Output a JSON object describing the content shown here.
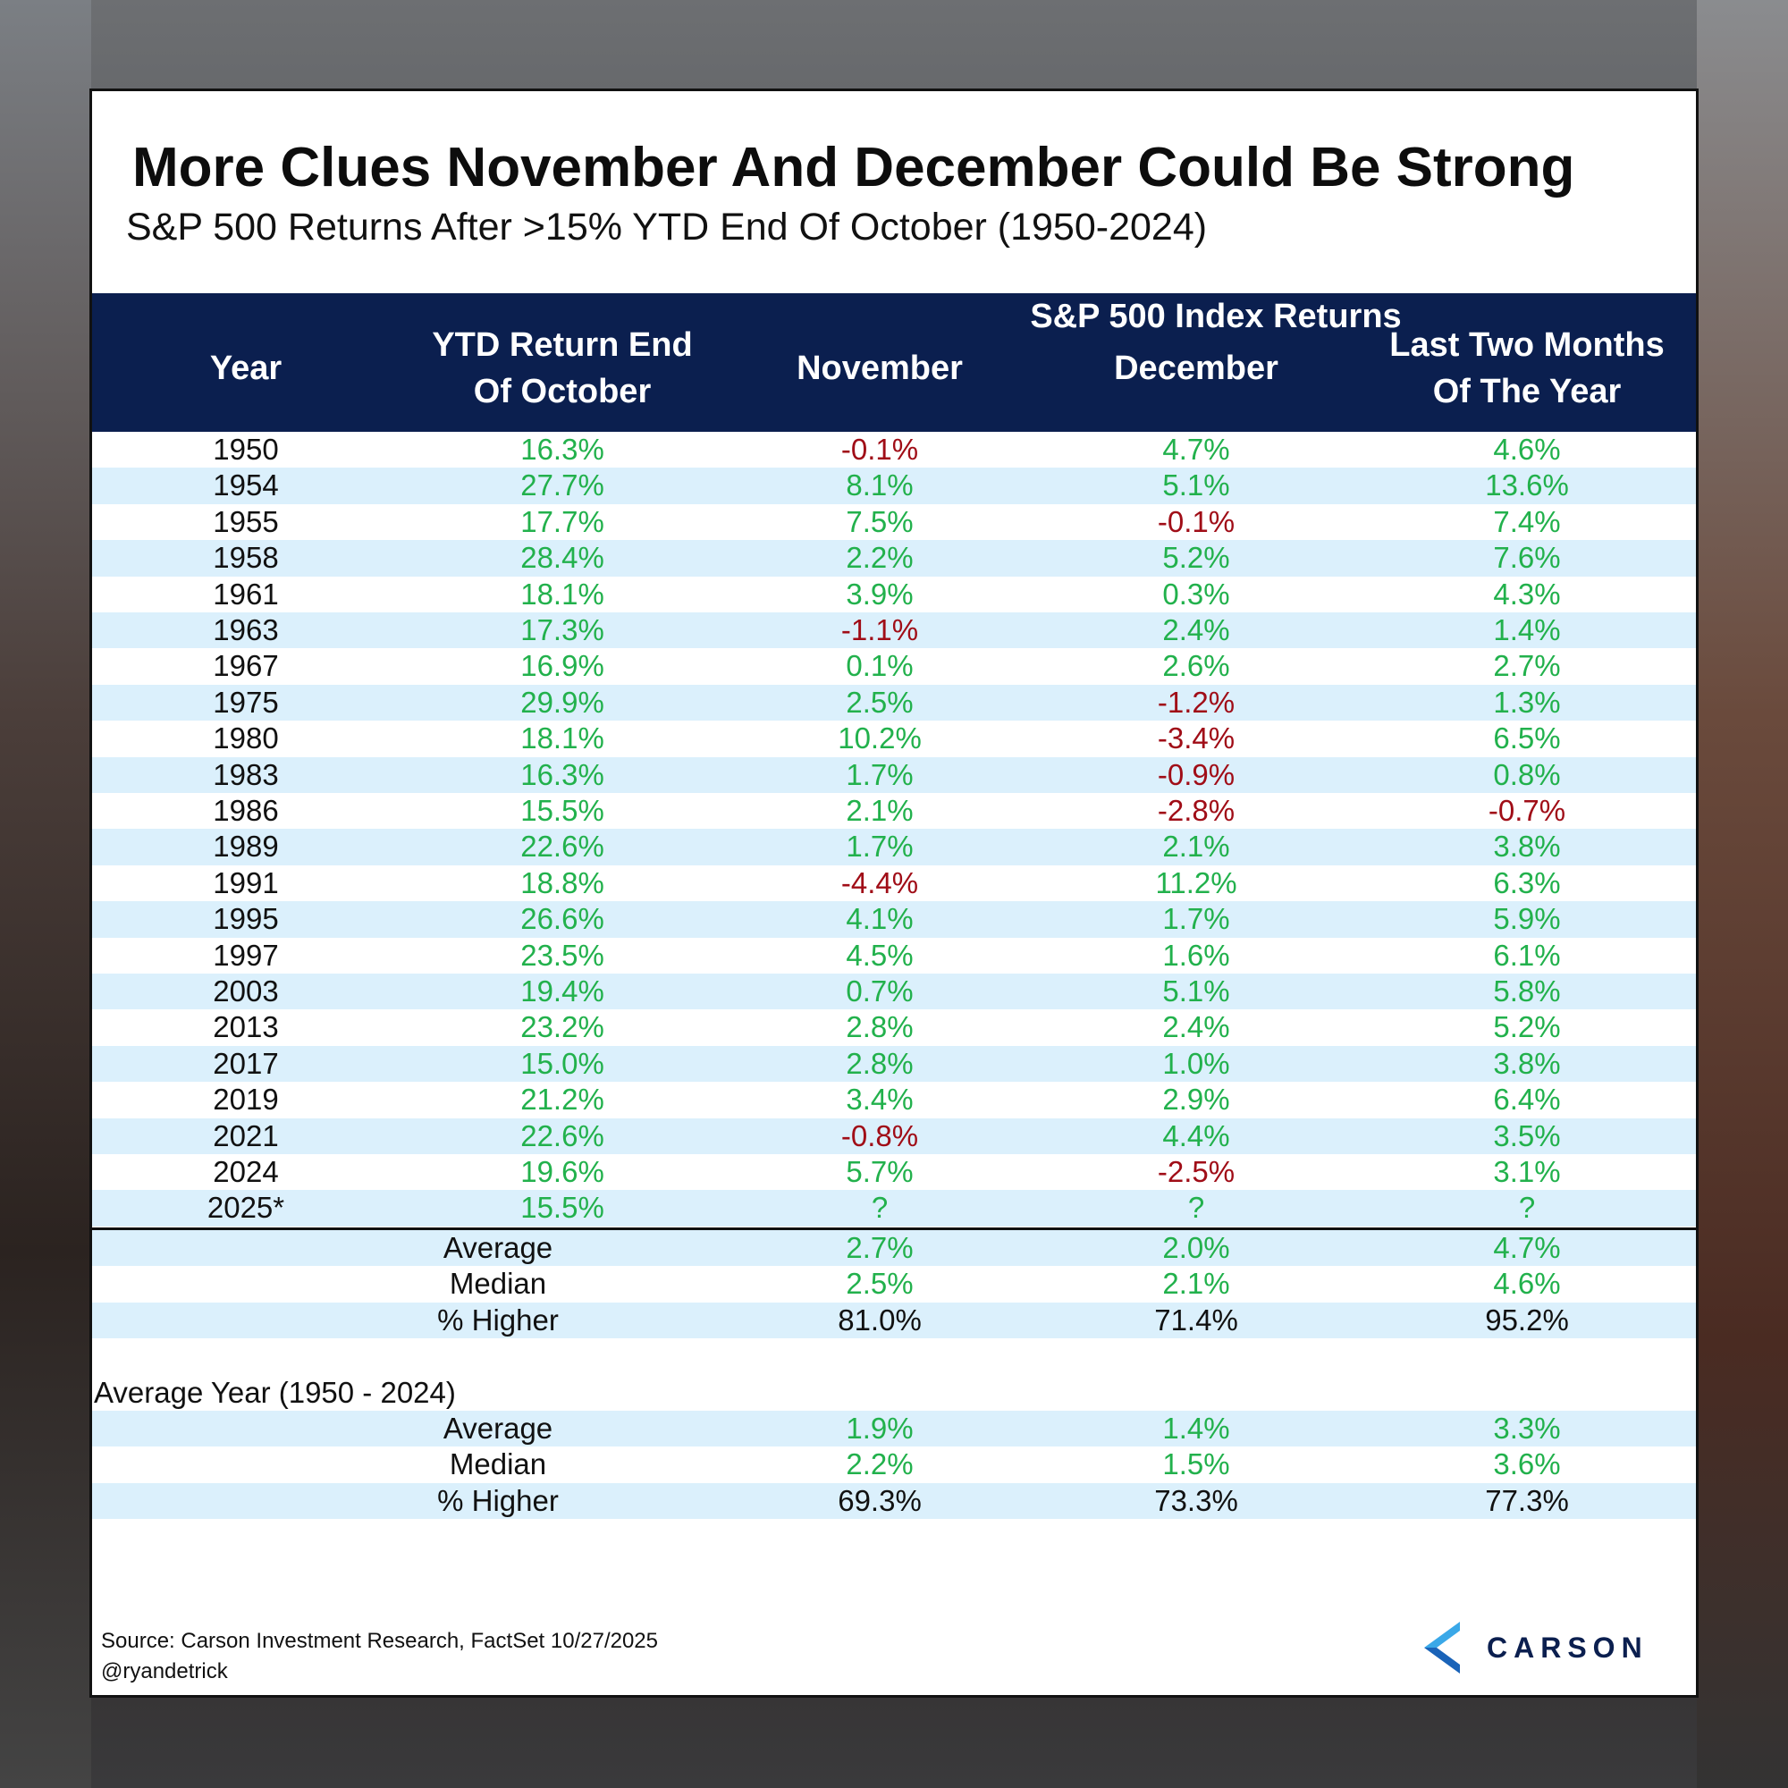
{
  "title": "More Clues November And December Could Be Strong",
  "subtitle": "S&P 500 Returns After >15% YTD End Of October (1950-2024)",
  "header": {
    "group": "S&P 500 Index Returns",
    "year": "Year",
    "ytd_1": "YTD Return End",
    "ytd_2": "Of October",
    "nov": "November",
    "dec": "December",
    "last_1": "Last Two Months",
    "last_2": "Of The Year"
  },
  "rows": [
    [
      "1950",
      "16.3%",
      "-0.1%",
      "4.7%",
      "4.6%"
    ],
    [
      "1954",
      "27.7%",
      "8.1%",
      "5.1%",
      "13.6%"
    ],
    [
      "1955",
      "17.7%",
      "7.5%",
      "-0.1%",
      "7.4%"
    ],
    [
      "1958",
      "28.4%",
      "2.2%",
      "5.2%",
      "7.6%"
    ],
    [
      "1961",
      "18.1%",
      "3.9%",
      "0.3%",
      "4.3%"
    ],
    [
      "1963",
      "17.3%",
      "-1.1%",
      "2.4%",
      "1.4%"
    ],
    [
      "1967",
      "16.9%",
      "0.1%",
      "2.6%",
      "2.7%"
    ],
    [
      "1975",
      "29.9%",
      "2.5%",
      "-1.2%",
      "1.3%"
    ],
    [
      "1980",
      "18.1%",
      "10.2%",
      "-3.4%",
      "6.5%"
    ],
    [
      "1983",
      "16.3%",
      "1.7%",
      "-0.9%",
      "0.8%"
    ],
    [
      "1986",
      "15.5%",
      "2.1%",
      "-2.8%",
      "-0.7%"
    ],
    [
      "1989",
      "22.6%",
      "1.7%",
      "2.1%",
      "3.8%"
    ],
    [
      "1991",
      "18.8%",
      "-4.4%",
      "11.2%",
      "6.3%"
    ],
    [
      "1995",
      "26.6%",
      "4.1%",
      "1.7%",
      "5.9%"
    ],
    [
      "1997",
      "23.5%",
      "4.5%",
      "1.6%",
      "6.1%"
    ],
    [
      "2003",
      "19.4%",
      "0.7%",
      "5.1%",
      "5.8%"
    ],
    [
      "2013",
      "23.2%",
      "2.8%",
      "2.4%",
      "5.2%"
    ],
    [
      "2017",
      "15.0%",
      "2.8%",
      "1.0%",
      "3.8%"
    ],
    [
      "2019",
      "21.2%",
      "3.4%",
      "2.9%",
      "6.4%"
    ],
    [
      "2021",
      "22.6%",
      "-0.8%",
      "4.4%",
      "3.5%"
    ],
    [
      "2024",
      "19.6%",
      "5.7%",
      "-2.5%",
      "3.1%"
    ],
    [
      "2025*",
      "15.5%",
      "?",
      "?",
      "?"
    ]
  ],
  "summary": [
    [
      "Average",
      "2.7%",
      "2.0%",
      "4.7%"
    ],
    [
      "Median",
      "2.5%",
      "2.1%",
      "4.6%"
    ],
    [
      "% Higher",
      "81.0%",
      "71.4%",
      "95.2%"
    ]
  ],
  "average_year_label": "Average Year (1950 - 2024)",
  "average_year": [
    [
      "Average",
      "1.9%",
      "1.4%",
      "3.3%"
    ],
    [
      "Median",
      "2.2%",
      "1.5%",
      "3.6%"
    ],
    [
      "% Higher",
      "69.3%",
      "73.3%",
      "77.3%"
    ]
  ],
  "source": "Source: Carson Investment Research, FactSet 10/27/2025",
  "handle": "@ryandetrick",
  "logo": "CARSON",
  "colors": {
    "positive": "#22b14c",
    "negative": "#a00d17",
    "header": "#0b1f4f",
    "stripe": "#dbf0fc"
  }
}
